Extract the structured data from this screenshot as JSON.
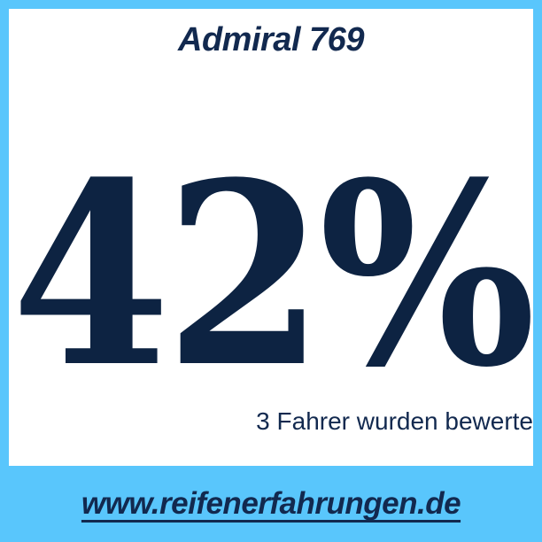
{
  "header": {
    "title": "Admiral 769"
  },
  "stat": {
    "value": "42%",
    "subtext": "3 Fahrer wurden bewerte"
  },
  "footer": {
    "url": "www.reifenerfahrungen.de"
  },
  "colors": {
    "accent_cyan": "#59c6fc",
    "navy": "#0d2342",
    "background": "#ffffff"
  }
}
